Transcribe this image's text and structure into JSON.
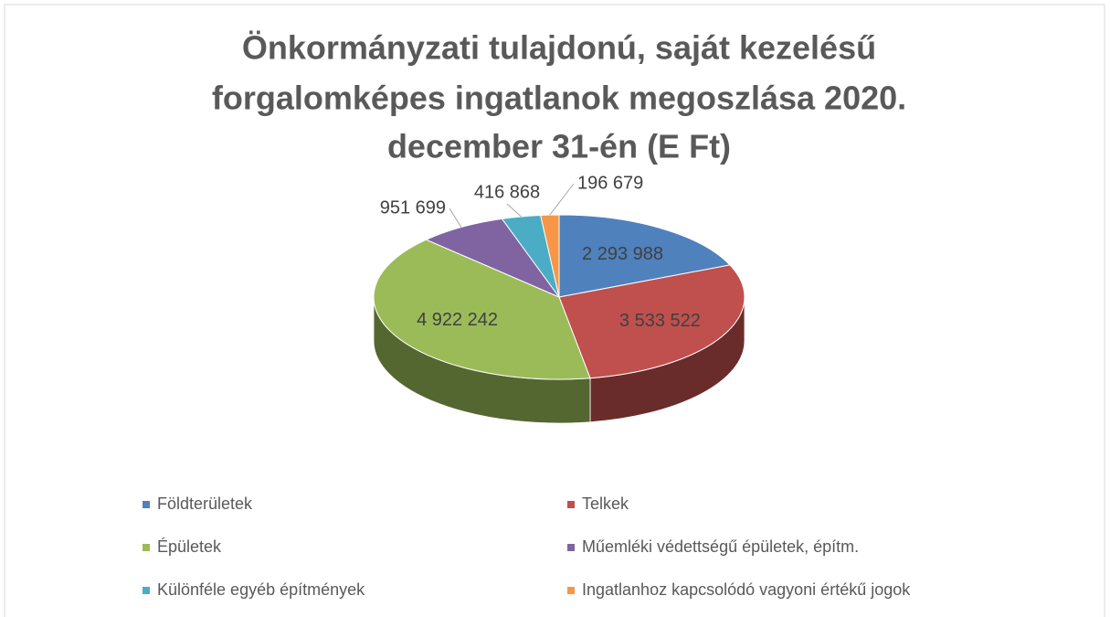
{
  "chart_data": {
    "type": "pie",
    "title": [
      "Önkormányzati tulajdonú, saját kezelésű",
      "forgalomképes ingatlanok megoszlása 2020.",
      "december 31-én (E Ft)"
    ],
    "categories": [
      "Földterületek",
      "Telkek",
      "Épületek",
      "Műemléki védettségű épületek, építm.",
      "Különféle egyéb építmények",
      "Ingatlanhoz kapcsolódó vagyoni értékű jogok"
    ],
    "values": [
      2293988,
      3533522,
      4922242,
      951699,
      416868,
      196679
    ],
    "value_labels": [
      "2 293 988",
      "3 533 522",
      "4 922 242",
      "951 699",
      "416 868",
      "196 679"
    ],
    "colors": [
      "#4f81bd",
      "#c0504d",
      "#9bbb59",
      "#8064a2",
      "#4bacc6",
      "#f79646"
    ],
    "legend": "bottom"
  }
}
